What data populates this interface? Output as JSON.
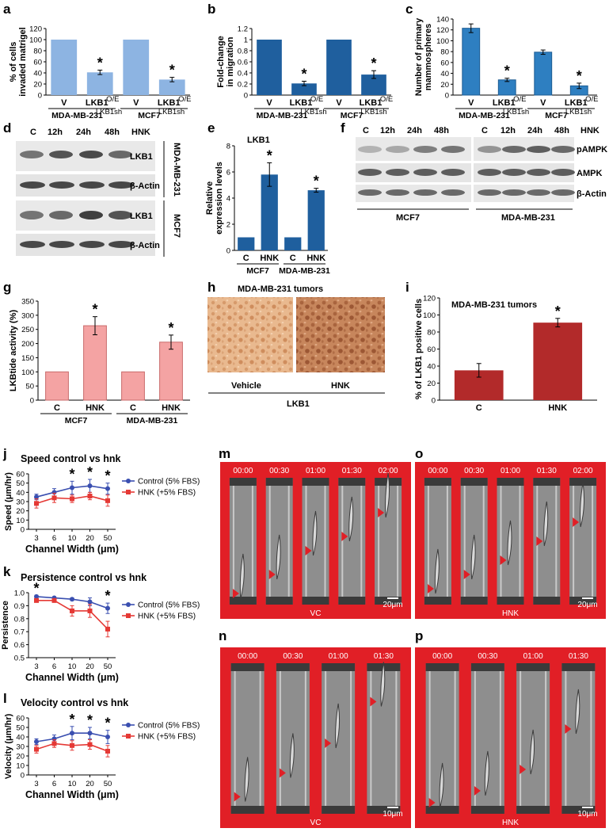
{
  "panel_letters": {
    "a": "a",
    "b": "b",
    "c": "c",
    "d": "d",
    "e": "e",
    "f": "f",
    "g": "g",
    "h": "h",
    "i": "i",
    "j": "j",
    "k": "k",
    "l": "l",
    "m": "m",
    "n": "n",
    "o": "o",
    "p": "p"
  },
  "common": {
    "sig_marker": "*",
    "v_label": "V",
    "lkb1_label": "LKB1",
    "lkb1_oe_sup": "O/E",
    "mda_231": "MDA-MB-231",
    "mcf7": "MCF7",
    "lkb1sh_sup": "LKB1sh",
    "c_label": "C",
    "hnk_label": "HNK",
    "beta_actin": "β-Actin"
  },
  "panel_a": {
    "chart_data": {
      "type": "bar",
      "ylabel_line1": "% of cells",
      "ylabel_line2": "invaded matrigel",
      "categories": [
        "V",
        "LKB1 O/E",
        "V",
        "LKB1 O/E"
      ],
      "groups": [
        "MDA-MB-231 LKB1sh",
        "MCF7 LKB1sh"
      ],
      "values": [
        100,
        41,
        100,
        28
      ],
      "errors": [
        0,
        4,
        0,
        4
      ],
      "significant": [
        false,
        true,
        false,
        true
      ],
      "ylim": [
        0,
        120
      ],
      "yticks": [
        "0",
        "20",
        "40",
        "60",
        "80",
        "100",
        "120"
      ],
      "color": "#8db4e2"
    }
  },
  "panel_b": {
    "chart_data": {
      "type": "bar",
      "ylabel_line1": "Fold-change",
      "ylabel_line2": "in migration",
      "categories": [
        "V",
        "LKB1 O/E",
        "V",
        "LKB1 O/E"
      ],
      "groups": [
        "MDA-MB-231 LKB1sh",
        "MCF7 LKB1sh"
      ],
      "values": [
        1,
        0.21,
        1,
        0.37
      ],
      "errors": [
        0,
        0.04,
        0,
        0.07
      ],
      "significant": [
        false,
        true,
        false,
        true
      ],
      "ylim": [
        0,
        1.2
      ],
      "yticks": [
        "0",
        "0.2",
        "0.4",
        "0.6",
        "0.8",
        "1",
        "1.2"
      ],
      "color": "#1f5f9e"
    }
  },
  "panel_c": {
    "chart_data": {
      "type": "bar",
      "ylabel_line1": "Number of primary",
      "ylabel_line2": "mammospheres",
      "categories": [
        "V",
        "LKB1 O/E",
        "V",
        "LKB1 O/E"
      ],
      "groups": [
        "MDA-MB-231 LKB1sh",
        "MCF7 LKB1sh"
      ],
      "values": [
        123,
        28,
        79,
        17
      ],
      "errors": [
        8,
        3,
        4,
        5
      ],
      "significant": [
        false,
        true,
        false,
        true
      ],
      "ylim": [
        0,
        140
      ],
      "yticks": [
        "0",
        "20",
        "40",
        "60",
        "80",
        "100",
        "120",
        "140"
      ],
      "color": "#2e7fc1"
    }
  },
  "panel_d": {
    "lanes": [
      "C",
      "12h",
      "24h",
      "48h"
    ],
    "treatment": "HNK",
    "rows": [
      "LKB1",
      "β-Actin",
      "LKB1",
      "β-Actin"
    ],
    "cell_lines": [
      "MDA-MB-231",
      "MCF7"
    ]
  },
  "panel_e": {
    "chart_data": {
      "type": "bar",
      "title": "LKB1",
      "ylabel_line1": "Relative",
      "ylabel_line2": "expression levels",
      "categories": [
        "C",
        "HNK",
        "C",
        "HNK"
      ],
      "groups": [
        "MCF7",
        "MDA-MB-231"
      ],
      "values": [
        1,
        5.8,
        1,
        4.6
      ],
      "errors": [
        0,
        0.9,
        0,
        0.15
      ],
      "significant": [
        false,
        true,
        false,
        true
      ],
      "ylim": [
        0,
        8
      ],
      "yticks": [
        "0",
        "2",
        "4",
        "6",
        "8"
      ],
      "color": "#1f5f9e"
    }
  },
  "panel_f": {
    "lanes": [
      "C",
      "12h",
      "24h",
      "48h",
      "C",
      "12h",
      "24h",
      "48h"
    ],
    "treatment": "HNK",
    "rows": [
      "pAMPK",
      "AMPK",
      "β-Actin"
    ],
    "cell_lines": [
      "MCF7",
      "MDA-MB-231"
    ]
  },
  "panel_g": {
    "chart_data": {
      "type": "bar",
      "ylabel": "LKBtide activity (%)",
      "categories": [
        "C",
        "HNK",
        "C",
        "HNK"
      ],
      "groups": [
        "MCF7",
        "MDA-MB-231"
      ],
      "values": [
        100,
        263,
        100,
        205
      ],
      "errors": [
        0,
        32,
        0,
        25
      ],
      "significant": [
        false,
        true,
        false,
        true
      ],
      "ylim": [
        0,
        350
      ],
      "yticks": [
        "0",
        "50",
        "100",
        "150",
        "200",
        "250",
        "300",
        "350"
      ],
      "color": "#f4a3a3"
    }
  },
  "panel_h": {
    "title": "MDA-MB-231 tumors",
    "images": [
      "Vehicle",
      "HNK"
    ],
    "stain": "LKB1"
  },
  "panel_i": {
    "chart_data": {
      "type": "bar",
      "title": "MDA-MB-231 tumors",
      "ylabel": "% of LKB1 positive cells",
      "categories": [
        "C",
        "HNK"
      ],
      "values": [
        35,
        91
      ],
      "errors": [
        8,
        5
      ],
      "significant": [
        false,
        true
      ],
      "ylim": [
        0,
        120
      ],
      "yticks": [
        "0",
        "20",
        "40",
        "60",
        "80",
        "100",
        "120"
      ],
      "color": "#b22a2a"
    }
  },
  "panel_j": {
    "chart_data": {
      "type": "line",
      "title": "Speed control vs hnk",
      "ylabel": "Speed (μm/hr)",
      "xlabel": "Channel Width (μm)",
      "x": [
        "3",
        "6",
        "10",
        "20",
        "50"
      ],
      "series": [
        {
          "name": "Control (5% FBS)",
          "color": "#3a4fb0",
          "values": [
            35,
            40,
            45,
            47,
            44
          ],
          "errors": [
            3,
            4,
            7,
            7,
            6
          ]
        },
        {
          "name": "HNK (+5% FBS)",
          "color": "#e53935",
          "values": [
            28,
            34,
            33,
            36,
            31
          ],
          "errors": [
            5,
            5,
            4,
            4,
            6
          ]
        }
      ],
      "significant": [
        false,
        false,
        true,
        true,
        true
      ],
      "ylim": [
        0,
        60
      ],
      "yticks": [
        "0",
        "10",
        "20",
        "30",
        "40",
        "50",
        "60"
      ]
    }
  },
  "panel_k": {
    "chart_data": {
      "type": "line",
      "title": "Persistence control vs hnk",
      "ylabel": "Persistence",
      "xlabel": "Channel Width (μm)",
      "x": [
        "3",
        "6",
        "10",
        "20",
        "50"
      ],
      "series": [
        {
          "name": "Control (5% FBS)",
          "color": "#3a4fb0",
          "values": [
            0.97,
            0.96,
            0.95,
            0.93,
            0.88
          ],
          "errors": [
            0.01,
            0.01,
            0.01,
            0.03,
            0.04
          ]
        },
        {
          "name": "HNK (+5% FBS)",
          "color": "#e53935",
          "values": [
            0.94,
            0.94,
            0.86,
            0.86,
            0.72
          ],
          "errors": [
            0.01,
            0.01,
            0.04,
            0.05,
            0.06
          ]
        }
      ],
      "significant": [
        true,
        false,
        false,
        false,
        true
      ],
      "ylim": [
        0.5,
        1.0
      ],
      "yticks": [
        "0.5",
        "0.6",
        "0.7",
        "0.8",
        "0.9",
        "1.0"
      ]
    }
  },
  "panel_l": {
    "chart_data": {
      "type": "line",
      "title": "Velocity control vs hnk",
      "ylabel": "Velocity (μm/hr)",
      "xlabel": "Channel Width (μm)",
      "x": [
        "3",
        "6",
        "10",
        "20",
        "50"
      ],
      "series": [
        {
          "name": "Control (5% FBS)",
          "color": "#3a4fb0",
          "values": [
            35,
            38,
            44,
            44,
            40
          ],
          "errors": [
            3,
            4,
            7,
            6,
            7
          ]
        },
        {
          "name": "HNK (+5% FBS)",
          "color": "#e53935",
          "values": [
            27,
            33,
            31,
            32,
            25
          ],
          "errors": [
            4,
            4,
            5,
            5,
            6
          ]
        }
      ],
      "significant": [
        false,
        false,
        true,
        true,
        true
      ],
      "ylim": [
        0,
        60
      ],
      "yticks": [
        "0",
        "10",
        "20",
        "30",
        "40",
        "50",
        "60"
      ]
    }
  },
  "panel_m": {
    "times": [
      "00:00",
      "00:30",
      "01:00",
      "01:30",
      "02:00"
    ],
    "caption": "VC",
    "scale": "20μm"
  },
  "panel_o": {
    "times": [
      "00:00",
      "00:30",
      "01:00",
      "01:30",
      "02:00"
    ],
    "caption": "HNK",
    "scale": "20μm"
  },
  "panel_n": {
    "times": [
      "00:00",
      "00:30",
      "01:00",
      "01:30"
    ],
    "caption": "VC",
    "scale": "10μm"
  },
  "panel_p": {
    "times": [
      "00:00",
      "00:30",
      "01:00",
      "01:30"
    ],
    "caption": "HNK",
    "scale": "10μm"
  }
}
